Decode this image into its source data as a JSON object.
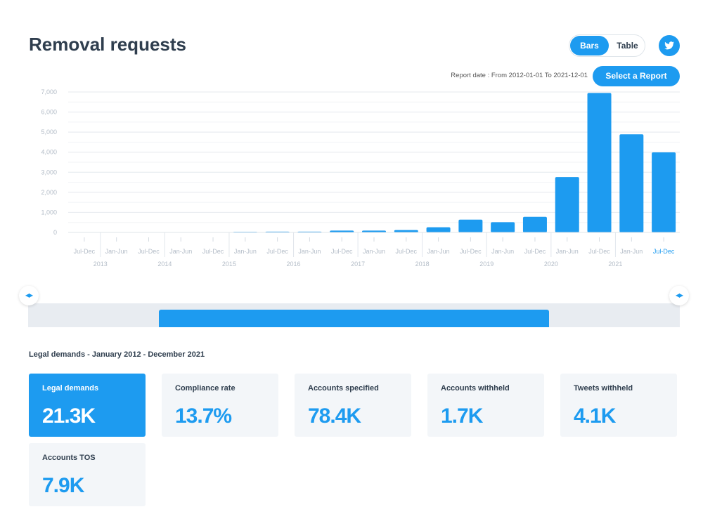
{
  "header": {
    "title": "Removal requests",
    "view_bars": "Bars",
    "view_table": "Table",
    "twitter_icon": "twitter-bird-icon",
    "report_date": "Report date : From 2012-01-01 To 2021-12-01",
    "select_report": "Select a Report"
  },
  "colors": {
    "accent": "#1d9bf0",
    "selected_label": "#1d9bf0"
  },
  "chart_data": {
    "type": "bar",
    "ylim": [
      0,
      7000
    ],
    "yticks": [
      "0",
      "1,000",
      "2,000",
      "3,000",
      "4,000",
      "5,000",
      "6,000",
      "7,000"
    ],
    "categories": [
      "Jul-Dec",
      "Jan-Jun",
      "Jul-Dec",
      "Jan-Jun",
      "Jul-Dec",
      "Jan-Jun",
      "Jul-Dec",
      "Jan-Jun",
      "Jul-Dec",
      "Jan-Jun",
      "Jul-Dec",
      "Jan-Jun",
      "Jul-Dec",
      "Jan-Jun",
      "Jul-Dec",
      "Jan-Jun",
      "Jul-Dec",
      "Jan-Jun",
      "Jul-Dec"
    ],
    "year_labels": [
      "2013",
      "2014",
      "2015",
      "2016",
      "2017",
      "2018",
      "2019",
      "2020",
      "2021"
    ],
    "values": [
      0,
      0,
      10,
      0,
      10,
      30,
      40,
      40,
      90,
      90,
      120,
      260,
      640,
      510,
      780,
      2760,
      6950,
      4890,
      3990
    ],
    "selected_category_index": 18,
    "grid": true
  },
  "summary": {
    "subtitle": "Legal demands - January 2012 - December 2021",
    "cards": [
      {
        "label": "Legal demands",
        "value": "21.3K"
      },
      {
        "label": "Compliance rate",
        "value": "13.7%"
      },
      {
        "label": "Accounts specified",
        "value": "78.4K"
      },
      {
        "label": "Accounts withheld",
        "value": "1.7K"
      },
      {
        "label": "Tweets withheld",
        "value": "4.1K"
      },
      {
        "label": "Accounts TOS",
        "value": "7.9K"
      }
    ]
  }
}
